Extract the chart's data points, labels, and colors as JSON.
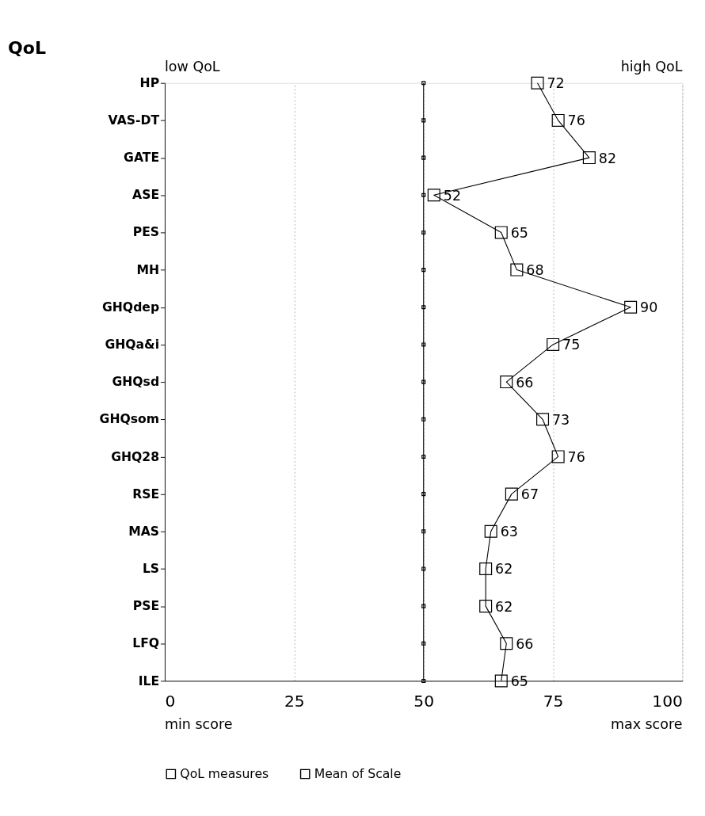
{
  "chart_data": {
    "type": "line",
    "orientation": "horizontal",
    "title": "QoL",
    "categories": [
      "HP",
      "VAS-DT",
      "GATE",
      "ASE",
      "PES",
      "MH",
      "GHQdep",
      "GHQa&i",
      "GHQsd",
      "GHQsom",
      "GHQ28",
      "RSE",
      "MAS",
      "LS",
      "PSE",
      "LFQ",
      "ILE"
    ],
    "series": [
      {
        "name": "QoL measures",
        "color": "#000000",
        "values": [
          72,
          76,
          82,
          52,
          65,
          68,
          90,
          75,
          66,
          73,
          76,
          67,
          63,
          62,
          62,
          66,
          65
        ],
        "value_labels": [
          "72",
          "76",
          "82",
          "52",
          "65",
          "68",
          "90",
          "75",
          "66",
          "73",
          "76",
          "67",
          "63",
          "62",
          "62",
          "66",
          "65"
        ]
      },
      {
        "name": "Mean of Scale",
        "color": "#000000",
        "values": [
          50,
          50,
          50,
          50,
          50,
          50,
          50,
          50,
          50,
          50,
          50,
          50,
          50,
          50,
          50,
          50,
          50
        ]
      }
    ],
    "xlim": [
      0,
      100
    ],
    "xticks": [
      0,
      25,
      50,
      75,
      100
    ],
    "annotations": [
      "low QoL",
      "high QoL",
      "min score",
      "max score"
    ],
    "grid": "x",
    "legend": "bottom",
    "marker": "square",
    "line_style": "solid"
  }
}
